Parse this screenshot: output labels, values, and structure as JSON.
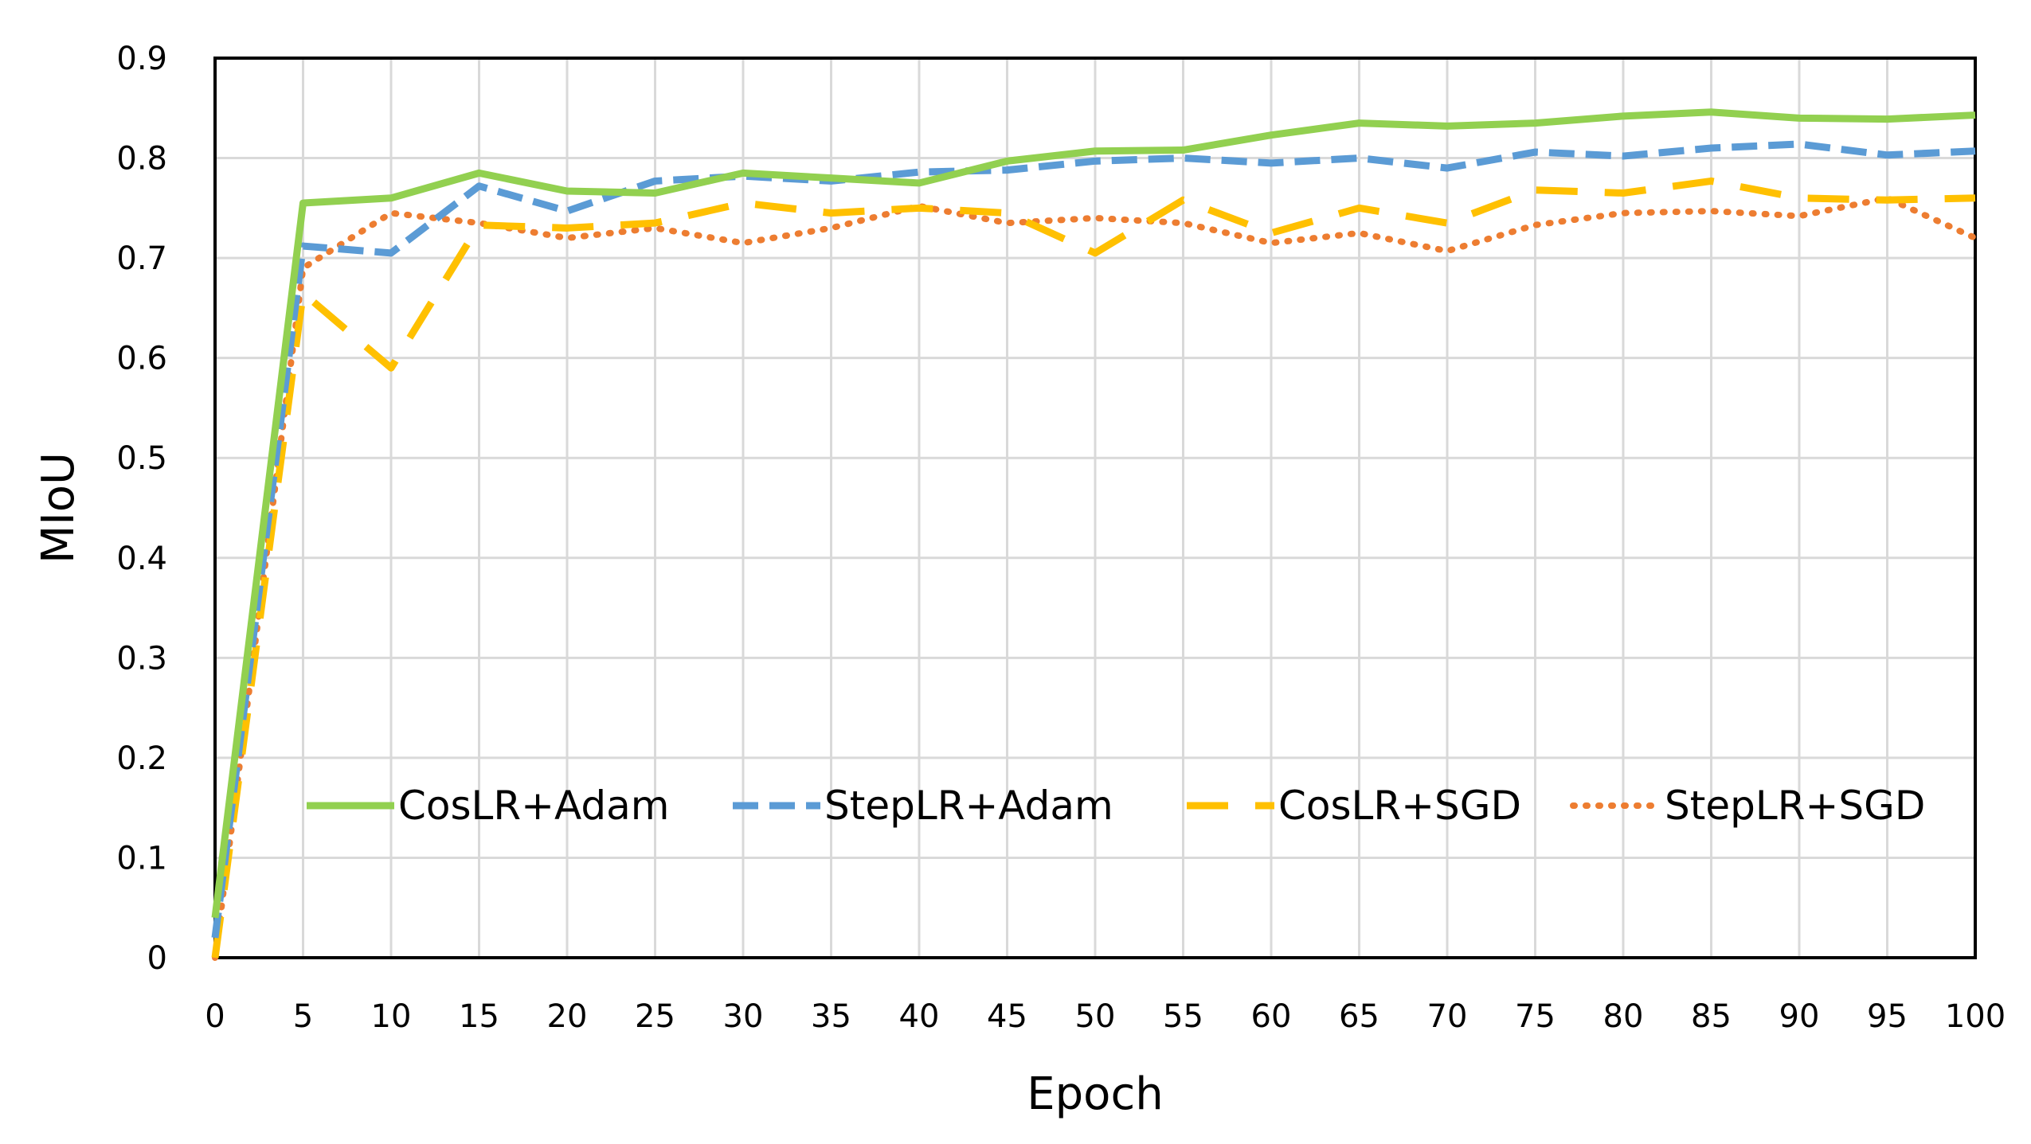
{
  "chart_data": {
    "type": "line",
    "title": "",
    "xlabel": "Epoch",
    "ylabel": "MIoU",
    "xlim": [
      0,
      100
    ],
    "ylim": [
      0,
      0.9
    ],
    "xticks": [
      "0",
      "5",
      "10",
      "15",
      "20",
      "25",
      "30",
      "35",
      "40",
      "45",
      "50",
      "55",
      "60",
      "65",
      "70",
      "75",
      "80",
      "85",
      "90",
      "95",
      "100"
    ],
    "yticks": [
      "0",
      "0.1",
      "0.2",
      "0.3",
      "0.4",
      "0.5",
      "0.6",
      "0.7",
      "0.8",
      "0.9"
    ],
    "grid": true,
    "legend_position": "lower-center",
    "x": [
      0,
      5,
      10,
      15,
      20,
      25,
      30,
      35,
      40,
      45,
      50,
      55,
      60,
      65,
      70,
      75,
      80,
      85,
      90,
      95,
      100
    ],
    "series": [
      {
        "name": "CosLR+Adam",
        "color": "#92d050",
        "style": "solid",
        "values": [
          0.04,
          0.755,
          0.76,
          0.785,
          0.767,
          0.765,
          0.785,
          0.78,
          0.775,
          0.797,
          0.807,
          0.808,
          0.823,
          0.835,
          0.832,
          0.835,
          0.842,
          0.846,
          0.84,
          0.839,
          0.843
        ]
      },
      {
        "name": "StepLR+Adam",
        "color": "#5b9bd5",
        "style": "dash",
        "values": [
          0.02,
          0.712,
          0.705,
          0.772,
          0.747,
          0.777,
          0.782,
          0.777,
          0.786,
          0.788,
          0.797,
          0.8,
          0.795,
          0.8,
          0.79,
          0.806,
          0.802,
          0.81,
          0.814,
          0.803,
          0.807
        ]
      },
      {
        "name": "CosLR+SGD",
        "color": "#ffc000",
        "style": "longdash",
        "values": [
          0.0,
          0.665,
          0.59,
          0.733,
          0.73,
          0.735,
          0.755,
          0.745,
          0.75,
          0.745,
          0.705,
          0.758,
          0.725,
          0.75,
          0.735,
          0.768,
          0.765,
          0.777,
          0.76,
          0.758,
          0.76
        ]
      },
      {
        "name": "StepLR+SGD",
        "color": "#ed7d31",
        "style": "dot",
        "values": [
          0.0,
          0.69,
          0.745,
          0.735,
          0.72,
          0.73,
          0.715,
          0.73,
          0.752,
          0.735,
          0.74,
          0.735,
          0.715,
          0.725,
          0.707,
          0.733,
          0.745,
          0.747,
          0.742,
          0.76,
          0.72
        ]
      }
    ]
  }
}
